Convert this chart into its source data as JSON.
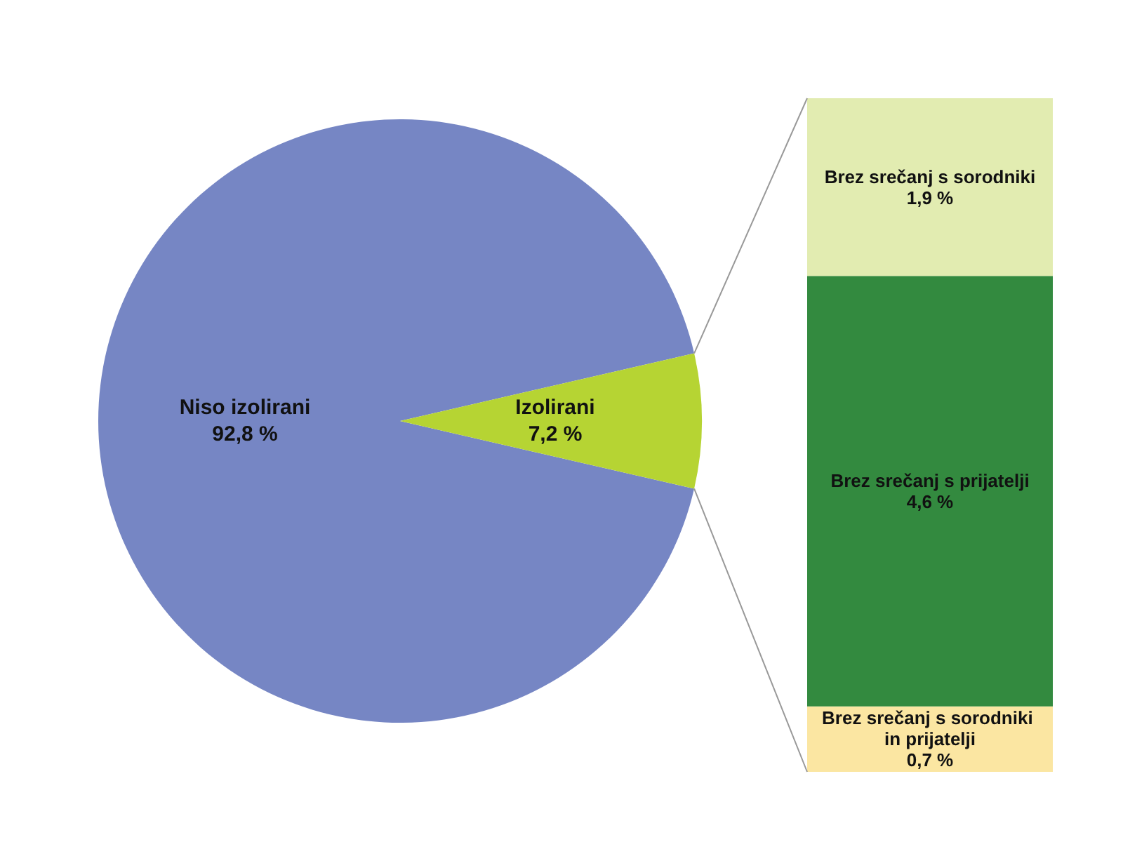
{
  "chart_data": [
    {
      "type": "pie",
      "categories": [
        "Niso izolirani",
        "Izolirani"
      ],
      "values": [
        92.8,
        7.2
      ],
      "colors": [
        "#7686c4",
        "#b6d433"
      ],
      "value_labels": [
        "92,8 %",
        "7,2 %"
      ]
    },
    {
      "type": "bar",
      "stacked": true,
      "categories": [
        null
      ],
      "tick_labels": false,
      "series": [
        {
          "name": "Brez srečanj s sorodniki in prijatelji",
          "color": "#fbe6a2",
          "values": [
            0.7
          ],
          "value_labels": [
            "0,7 %"
          ]
        },
        {
          "name": "Brez srečanj s prijatelji",
          "color": "#338a3f",
          "values": [
            4.6
          ],
          "value_labels": [
            "4,6 %"
          ]
        },
        {
          "name": "Brez srečanj s sorodniki",
          "color": "#e2ecb1",
          "values": [
            1.9
          ],
          "value_labels": [
            "1,9 %"
          ]
        }
      ]
    }
  ]
}
